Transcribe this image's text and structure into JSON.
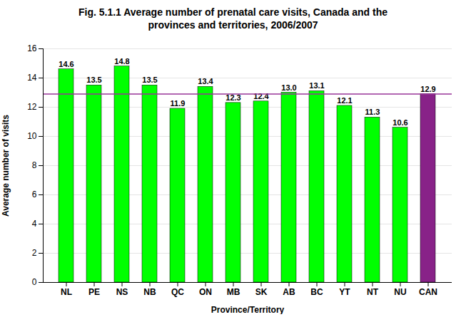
{
  "chart_data": {
    "type": "bar",
    "title": "Fig. 5.1.1 Average number of prenatal care visits, Canada and the\nprovinces and territories, 2006/2007",
    "x_label": "Province/Territory",
    "y_label": "Average number of visits",
    "categories": [
      "NL",
      "PE",
      "NS",
      "NB",
      "QC",
      "ON",
      "MB",
      "SK",
      "AB",
      "BC",
      "YT",
      "NT",
      "NU",
      "CAN"
    ],
    "values": [
      14.6,
      13.5,
      14.8,
      13.5,
      11.9,
      13.4,
      12.3,
      12.4,
      13.0,
      13.1,
      12.1,
      11.3,
      10.6,
      12.9
    ],
    "value_labels": [
      "14.6",
      "13.5",
      "14.8",
      "13.5",
      "11.9",
      "13.4",
      "12.3",
      "12.4",
      "13.0",
      "13.1",
      "12.1",
      "11.3",
      "10.6",
      "12.9"
    ],
    "colors": [
      "#00ff00",
      "#00ff00",
      "#00ff00",
      "#00ff00",
      "#00ff00",
      "#00ff00",
      "#00ff00",
      "#00ff00",
      "#00ff00",
      "#00ff00",
      "#00ff00",
      "#00ff00",
      "#00ff00",
      "#882288"
    ],
    "reference_line": 12.9,
    "reference_line_color": "#993399",
    "ylim": [
      0,
      16
    ],
    "yticks": [
      0,
      2,
      4,
      6,
      8,
      10,
      12,
      14,
      16
    ],
    "grid": true,
    "data_labels": true
  }
}
